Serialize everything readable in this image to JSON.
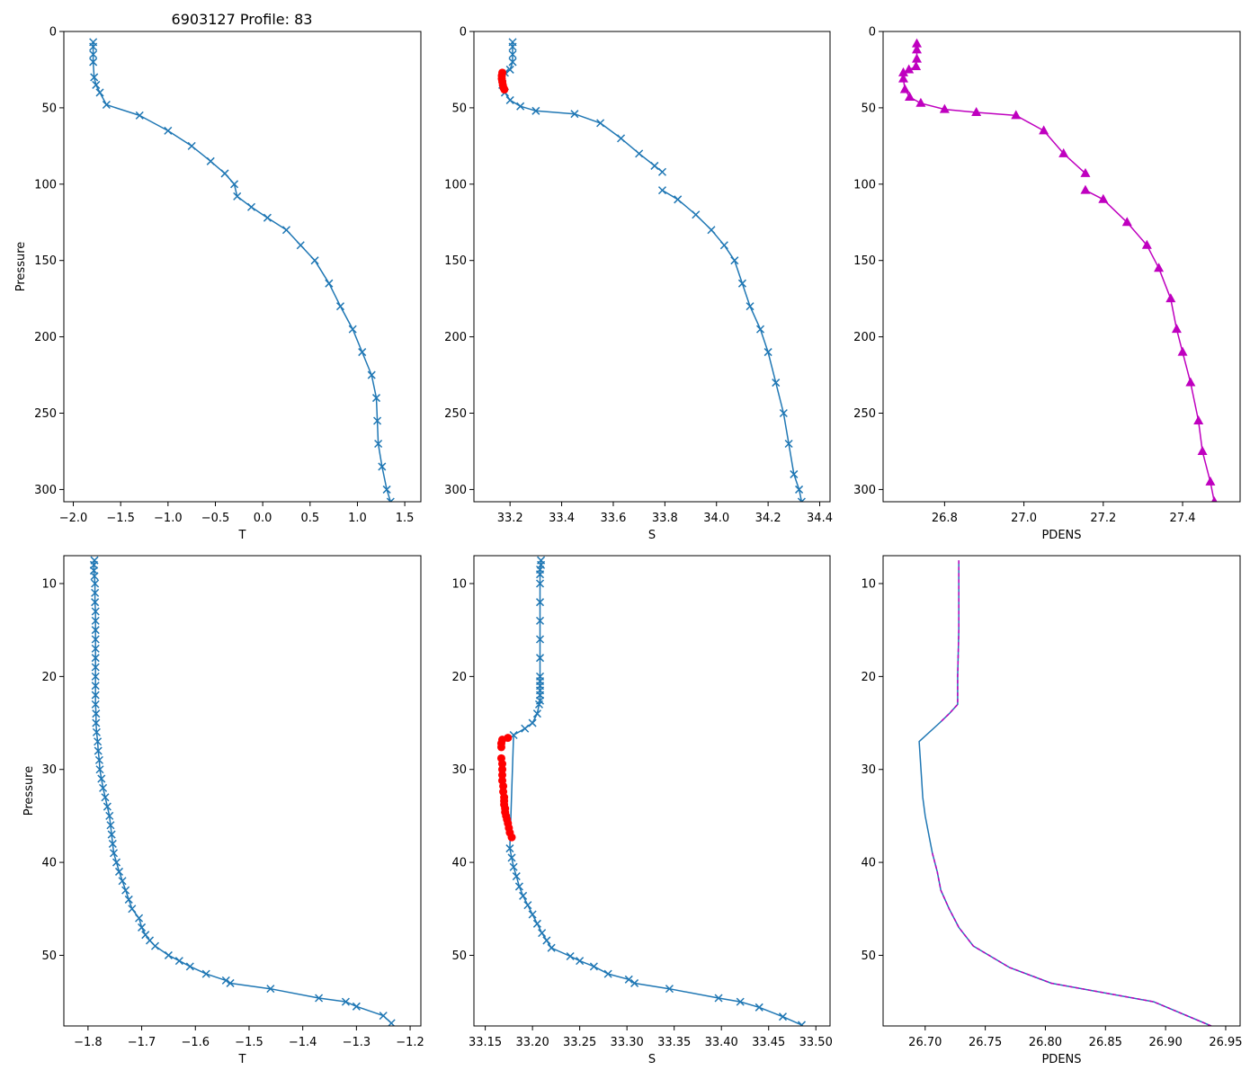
{
  "figure_title": "6903127 Profile: 83",
  "colors": {
    "line": "#1f77b4",
    "flag": "#ff0000",
    "density": "#bf00bf"
  },
  "chart_data": [
    {
      "id": "top-temperature",
      "type": "line",
      "xlabel": "T",
      "ylabel": "Pressure",
      "xlim": [
        -2.1,
        1.67
      ],
      "ylim": [
        308,
        0
      ],
      "yinverted": true,
      "xticks": [
        -2.0,
        -1.5,
        -1.0,
        -0.5,
        0.0,
        0.5,
        1.0,
        1.5
      ],
      "xticklabels": [
        "−2.0",
        "−1.5",
        "−1.0",
        "−0.5",
        "0.0",
        "0.5",
        "1.0",
        "1.5"
      ],
      "yticks": [
        0,
        50,
        100,
        150,
        200,
        250,
        300
      ],
      "yticklabels": [
        "0",
        "50",
        "100",
        "150",
        "200",
        "250",
        "300"
      ],
      "series": [
        {
          "name": "T",
          "color": "#1f77b4",
          "marker": "x",
          "x": [
            -1.79,
            -1.79,
            -1.79,
            -1.79,
            -1.78,
            -1.76,
            -1.72,
            -1.65,
            -1.3,
            -1.0,
            -0.75,
            -0.55,
            -0.4,
            -0.3,
            -0.27,
            -0.12,
            0.05,
            0.25,
            0.4,
            0.55,
            0.7,
            0.82,
            0.95,
            1.05,
            1.15,
            1.2,
            1.21,
            1.22,
            1.26,
            1.31,
            1.35
          ],
          "y": [
            7,
            10,
            15,
            20,
            30,
            35,
            40,
            48,
            55,
            65,
            75,
            85,
            93,
            100,
            108,
            115,
            122,
            130,
            140,
            150,
            165,
            180,
            195,
            210,
            225,
            240,
            255,
            270,
            285,
            300,
            308
          ]
        }
      ]
    },
    {
      "id": "top-salinity",
      "type": "line",
      "xlabel": "S",
      "ylabel": "",
      "xlim": [
        33.06,
        34.44
      ],
      "ylim": [
        308,
        0
      ],
      "yinverted": true,
      "xticks": [
        33.2,
        33.4,
        33.6,
        33.8,
        34.0,
        34.2,
        34.4
      ],
      "xticklabels": [
        "33.2",
        "33.4",
        "33.6",
        "33.8",
        "34.0",
        "34.2",
        "34.4"
      ],
      "yticks": [
        0,
        50,
        100,
        150,
        200,
        250,
        300
      ],
      "yticklabels": [
        "0",
        "50",
        "100",
        "150",
        "200",
        "250",
        "300"
      ],
      "series": [
        {
          "name": "S upper",
          "color": "#1f77b4",
          "marker": "x",
          "x": [
            33.21,
            33.21,
            33.21,
            33.21,
            33.2,
            33.18,
            33.17,
            33.17,
            33.18,
            33.2,
            33.24,
            33.3,
            33.45,
            33.55,
            33.63,
            33.7,
            33.76,
            33.79
          ],
          "y": [
            7,
            10,
            15,
            20,
            25,
            27,
            30,
            35,
            40,
            45,
            49,
            52,
            54,
            60,
            70,
            80,
            88,
            92
          ]
        },
        {
          "name": "S lower",
          "color": "#1f77b4",
          "marker": "x",
          "x": [
            33.79,
            33.85,
            33.92,
            33.98,
            34.03,
            34.07,
            34.1,
            34.13,
            34.17,
            34.2,
            34.23,
            34.26,
            34.28,
            34.3,
            34.32,
            34.33
          ],
          "y": [
            104,
            110,
            120,
            130,
            140,
            150,
            165,
            180,
            195,
            210,
            230,
            250,
            270,
            290,
            300,
            308
          ]
        },
        {
          "name": "S flagged",
          "color": "#ff0000",
          "marker": "o",
          "x": [
            33.17,
            33.168,
            33.168,
            33.17,
            33.172,
            33.175,
            33.178
          ],
          "y": [
            27,
            29,
            31,
            33,
            35,
            37,
            38
          ]
        }
      ]
    },
    {
      "id": "top-density",
      "type": "line",
      "xlabel": "PDENS",
      "ylabel": "",
      "xlim": [
        26.645,
        27.545
      ],
      "ylim": [
        308,
        0
      ],
      "yinverted": true,
      "xticks": [
        26.8,
        27.0,
        27.2,
        27.4
      ],
      "xticklabels": [
        "26.8",
        "27.0",
        "27.2",
        "27.4"
      ],
      "yticks": [
        0,
        50,
        100,
        150,
        200,
        250,
        300
      ],
      "yticklabels": [
        "0",
        "50",
        "100",
        "150",
        "200",
        "250",
        "300"
      ],
      "series": [
        {
          "name": "PDENS",
          "color": "#bf00bf",
          "marker": "^",
          "x": [
            26.73,
            26.73,
            26.73,
            26.728,
            26.71,
            26.696,
            26.696,
            26.7,
            26.712,
            26.74,
            26.8,
            26.88,
            26.98,
            27.05,
            27.1,
            27.155
          ],
          "y": [
            8,
            12,
            18,
            23,
            25,
            27,
            31,
            38,
            43,
            47,
            51,
            53,
            55,
            65,
            80,
            93
          ]
        },
        {
          "name": "PDENS lower",
          "color": "#bf00bf",
          "marker": "^",
          "x": [
            27.155,
            27.2,
            27.26,
            27.31,
            27.34,
            27.37,
            27.385,
            27.4,
            27.42,
            27.44,
            27.45,
            27.47,
            27.48
          ],
          "y": [
            104,
            110,
            125,
            140,
            155,
            175,
            195,
            210,
            230,
            255,
            275,
            295,
            308
          ]
        }
      ]
    },
    {
      "id": "bottom-temperature",
      "type": "line",
      "xlabel": "T",
      "ylabel": "Pressure",
      "xlim": [
        -1.845,
        -1.18
      ],
      "ylim": [
        57.6,
        7.0
      ],
      "yinverted": true,
      "xticks": [
        -1.8,
        -1.7,
        -1.6,
        -1.5,
        -1.4,
        -1.3,
        -1.2
      ],
      "xticklabels": [
        "−1.8",
        "−1.7",
        "−1.6",
        "−1.5",
        "−1.4",
        "−1.3",
        "−1.2"
      ],
      "yticks": [
        10,
        20,
        30,
        40,
        50
      ],
      "yticklabels": [
        "10",
        "20",
        "30",
        "40",
        "50"
      ],
      "series": [
        {
          "name": "T",
          "color": "#1f77b4",
          "marker": "x",
          "x": [
            -1.788,
            -1.789,
            -1.789,
            -1.788,
            -1.787,
            -1.787,
            -1.787,
            -1.786,
            -1.786,
            -1.786,
            -1.786,
            -1.786,
            -1.786,
            -1.786,
            -1.786,
            -1.786,
            -1.786,
            -1.786,
            -1.785,
            -1.785,
            -1.784,
            -1.782,
            -1.781,
            -1.779,
            -1.778,
            -1.775,
            -1.772,
            -1.768,
            -1.764,
            -1.76,
            -1.758,
            -1.756,
            -1.754,
            -1.752,
            -1.747,
            -1.742,
            -1.736,
            -1.73,
            -1.724,
            -1.718,
            -1.705,
            -1.7,
            -1.693,
            -1.685,
            -1.675,
            -1.65,
            -1.63,
            -1.61,
            -1.58,
            -1.543,
            -1.535,
            -1.46,
            -1.37,
            -1.32,
            -1.3,
            -1.25,
            -1.235
          ],
          "y": [
            7.5,
            8.0,
            8.6,
            9.2,
            10.0,
            11.0,
            12.0,
            13.0,
            14.0,
            15.0,
            16.0,
            17.0,
            18.0,
            19.0,
            20.0,
            21.0,
            22.0,
            23.0,
            24.0,
            25.0,
            26.0,
            27.0,
            28.0,
            29.0,
            30.0,
            31.0,
            32.0,
            33.0,
            34.0,
            35.0,
            36.0,
            37.0,
            38.0,
            39.0,
            40.0,
            41.0,
            42.0,
            43.0,
            44.0,
            45.0,
            46.0,
            47.0,
            47.8,
            48.4,
            49.0,
            50.0,
            50.6,
            51.2,
            52.0,
            52.7,
            53.0,
            53.6,
            54.6,
            55.0,
            55.5,
            56.5,
            57.3
          ]
        }
      ]
    },
    {
      "id": "bottom-salinity",
      "type": "line",
      "xlabel": "S",
      "ylabel": "",
      "xlim": [
        33.138,
        33.515
      ],
      "ylim": [
        57.6,
        7.0
      ],
      "yinverted": true,
      "xticks": [
        33.15,
        33.2,
        33.25,
        33.3,
        33.35,
        33.4,
        33.45,
        33.5
      ],
      "xticklabels": [
        "33.15",
        "33.20",
        "33.25",
        "33.30",
        "33.35",
        "33.40",
        "33.45",
        "33.50"
      ],
      "yticks": [
        10,
        20,
        30,
        40,
        50
      ],
      "yticklabels": [
        "10",
        "20",
        "30",
        "40",
        "50"
      ],
      "series": [
        {
          "name": "S",
          "color": "#1f77b4",
          "marker": "x",
          "x": [
            33.209,
            33.209,
            33.208,
            33.208,
            33.208,
            33.208,
            33.208,
            33.208,
            33.208,
            33.208,
            33.208,
            33.208,
            33.208,
            33.208,
            33.208,
            33.207,
            33.205,
            33.2,
            33.192,
            33.18,
            33.176,
            33.178,
            33.18,
            33.183,
            33.186,
            33.19,
            33.195,
            33.2,
            33.205,
            33.21,
            33.215,
            33.22,
            33.24,
            33.25,
            33.265,
            33.28,
            33.302,
            33.308,
            33.345,
            33.397,
            33.42,
            33.44,
            33.465,
            33.485
          ],
          "y": [
            7.5,
            8.0,
            8.5,
            9.0,
            10.0,
            12.0,
            14.0,
            16.0,
            18.0,
            20.0,
            20.5,
            21.0,
            21.5,
            22.0,
            22.6,
            23.0,
            24.0,
            25.0,
            25.6,
            26.3,
            38.5,
            39.5,
            40.5,
            41.5,
            42.6,
            43.6,
            44.6,
            45.6,
            46.6,
            47.6,
            48.4,
            49.2,
            50.1,
            50.6,
            51.2,
            52.0,
            52.6,
            53.0,
            53.6,
            54.6,
            55.0,
            55.6,
            56.6,
            57.5
          ]
        },
        {
          "name": "S flagged",
          "color": "#ff0000",
          "marker": "o",
          "x": [
            33.174,
            33.168,
            33.167,
            33.167,
            33.167,
            33.168,
            33.168,
            33.168,
            33.168,
            33.169,
            33.169,
            33.17,
            33.17,
            33.17,
            33.171,
            33.171,
            33.172,
            33.173,
            33.174,
            33.175,
            33.176,
            33.178
          ],
          "y": [
            26.6,
            26.8,
            27.2,
            27.6,
            28.8,
            29.4,
            30.0,
            30.6,
            31.2,
            31.8,
            32.4,
            33.0,
            33.4,
            33.8,
            34.2,
            34.6,
            35.0,
            35.4,
            35.8,
            36.3,
            36.8,
            37.3
          ]
        }
      ]
    },
    {
      "id": "bottom-density",
      "type": "line",
      "xlabel": "PDENS",
      "ylabel": "",
      "xlim": [
        26.665,
        26.962
      ],
      "ylim": [
        57.6,
        7.0
      ],
      "yinverted": true,
      "xticks": [
        26.7,
        26.75,
        26.8,
        26.85,
        26.9,
        26.95
      ],
      "xticklabels": [
        "26.70",
        "26.75",
        "26.80",
        "26.85",
        "26.90",
        "26.95"
      ],
      "yticks": [
        10,
        20,
        30,
        40,
        50
      ],
      "yticklabels": [
        "10",
        "20",
        "30",
        "40",
        "50"
      ],
      "series": [
        {
          "name": "PDENS",
          "color": "#1f77b4",
          "marker": "none",
          "x": [
            26.728,
            26.728,
            26.728,
            26.727,
            26.727,
            26.72,
            26.712,
            26.695,
            26.697,
            26.698,
            26.7,
            26.703,
            26.706,
            26.71,
            26.713,
            26.72,
            26.728,
            26.74,
            26.77,
            26.805,
            26.89,
            26.938
          ],
          "y": [
            7.5,
            10.0,
            15.0,
            20.0,
            23.0,
            24.0,
            25.0,
            27.0,
            31.0,
            33.0,
            35.0,
            37.0,
            39.0,
            41.0,
            43.0,
            45.0,
            47.0,
            49.0,
            51.3,
            53.0,
            55.0,
            57.6
          ]
        },
        {
          "name": "PDENS flag",
          "color": "#bf00bf",
          "marker": "none",
          "dashed": true,
          "x": [
            26.728,
            26.728,
            26.728,
            26.727,
            26.727,
            26.72,
            26.712
          ],
          "y": [
            7.5,
            10.0,
            15.0,
            20.0,
            23.0,
            24.0,
            25.0
          ]
        },
        {
          "name": "PDENS flag lower",
          "color": "#bf00bf",
          "marker": "none",
          "dashed": true,
          "x": [
            26.706,
            26.71,
            26.713,
            26.72,
            26.728,
            26.74,
            26.77,
            26.805,
            26.89,
            26.938
          ],
          "y": [
            39.0,
            41.0,
            43.0,
            45.0,
            47.0,
            49.0,
            51.3,
            53.0,
            55.0,
            57.6
          ]
        }
      ]
    }
  ]
}
